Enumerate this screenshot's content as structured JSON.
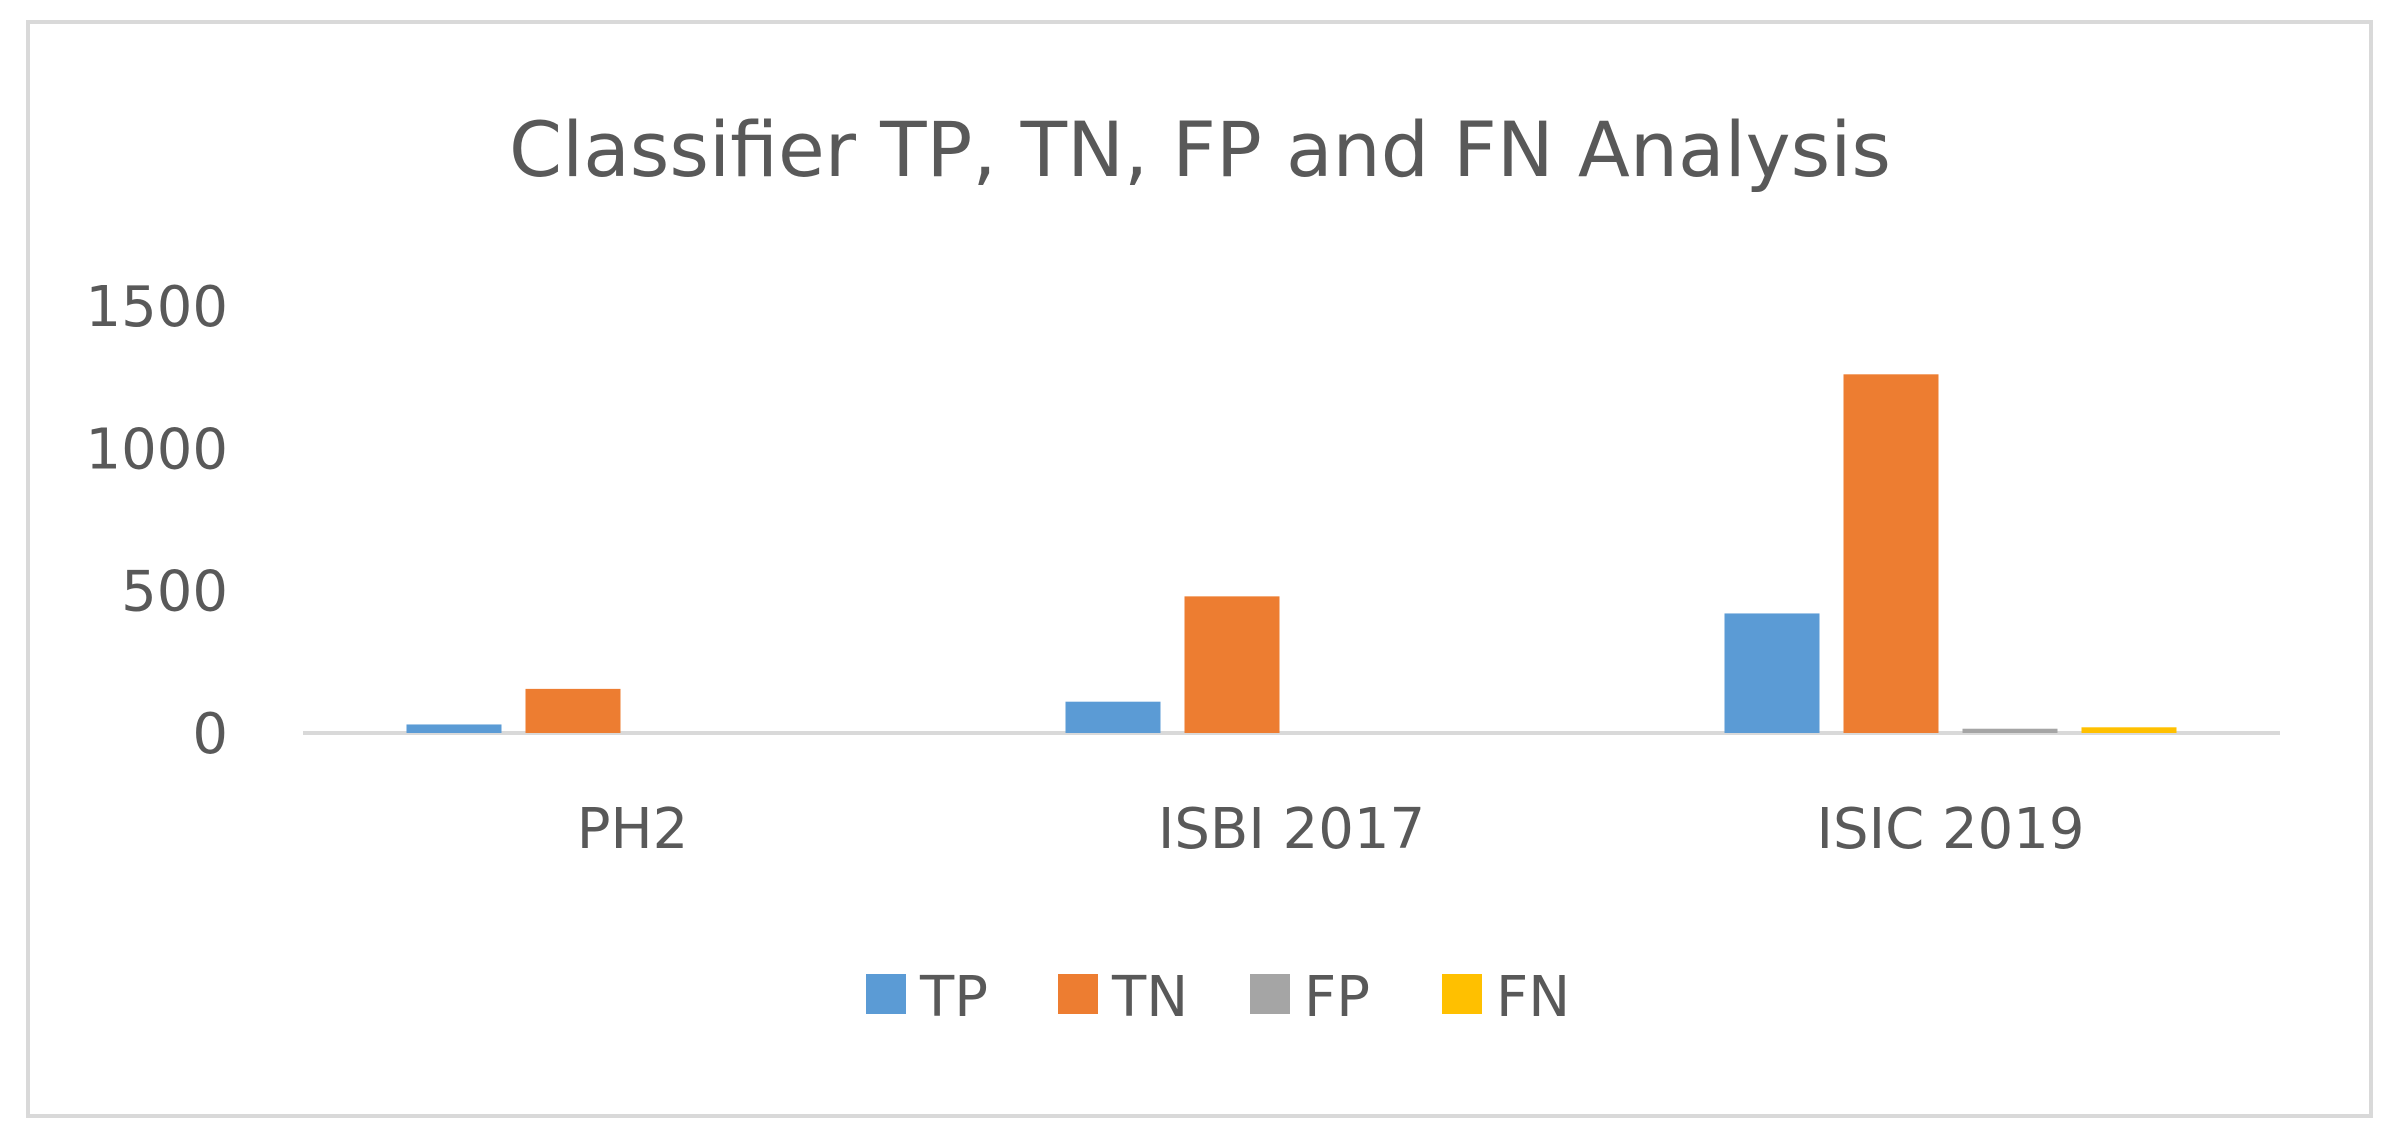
{
  "chart_data": {
    "type": "bar",
    "title": "Classifier TP, TN, FP and FN Analysis",
    "xlabel": "",
    "ylabel": "",
    "categories": [
      "PH2",
      "ISBI 2017",
      "ISIC 2019"
    ],
    "series": [
      {
        "name": "TP",
        "color": "#5b9bd5",
        "values": [
          30,
          110,
          420
        ]
      },
      {
        "name": "TN",
        "color": "#ed7d31",
        "values": [
          155,
          480,
          1260
        ]
      },
      {
        "name": "FP",
        "color": "#a5a5a5",
        "values": [
          0,
          0,
          15
        ]
      },
      {
        "name": "FN",
        "color": "#ffc000",
        "values": [
          0,
          0,
          20
        ]
      }
    ],
    "ylim": [
      0,
      1500
    ],
    "yticks": [
      "0",
      "500",
      "1000",
      "1500"
    ],
    "grid": false,
    "legend_position": "bottom"
  }
}
